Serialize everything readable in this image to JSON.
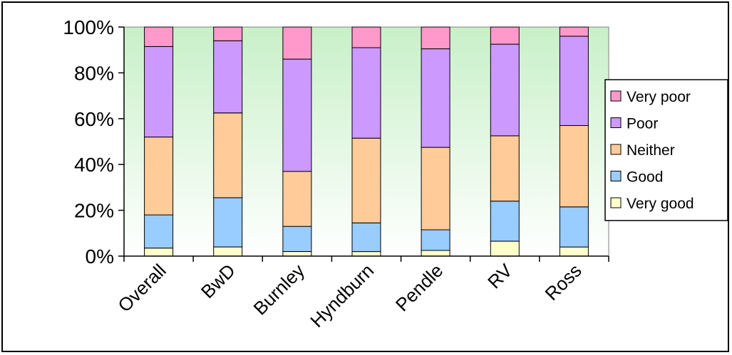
{
  "chart_data": {
    "type": "bar",
    "stacked": true,
    "percent": true,
    "categories": [
      "Overall",
      "BwD",
      "Burnley",
      "Hyndburn",
      "Pendle",
      "RV",
      "Ross"
    ],
    "series": [
      {
        "name": "Very good",
        "color": "#FFFFCC",
        "values": [
          3.5,
          4,
          2,
          2,
          2.5,
          6.5,
          4
        ]
      },
      {
        "name": "Good",
        "color": "#99CCFF",
        "values": [
          14.5,
          21.5,
          11,
          12.5,
          9,
          17.5,
          17.5
        ]
      },
      {
        "name": "Neither",
        "color": "#FFCC99",
        "values": [
          34,
          37,
          24,
          37,
          36,
          28.5,
          35.5
        ]
      },
      {
        "name": "Poor",
        "color": "#CC99FF",
        "values": [
          39.5,
          31.5,
          49,
          39.5,
          43,
          40,
          39
        ]
      },
      {
        "name": "Very poor",
        "color": "#FF99CC",
        "values": [
          8.5,
          6,
          14,
          9,
          9.5,
          7.5,
          4
        ]
      }
    ],
    "yticks": [
      "0%",
      "20%",
      "40%",
      "60%",
      "80%",
      "100%"
    ],
    "ylim": [
      0,
      100
    ],
    "legend_position": "right",
    "legend_order": [
      "Very poor",
      "Poor",
      "Neither",
      "Good",
      "Very good"
    ],
    "grid": false,
    "plot_background": "gradient white to light green"
  }
}
